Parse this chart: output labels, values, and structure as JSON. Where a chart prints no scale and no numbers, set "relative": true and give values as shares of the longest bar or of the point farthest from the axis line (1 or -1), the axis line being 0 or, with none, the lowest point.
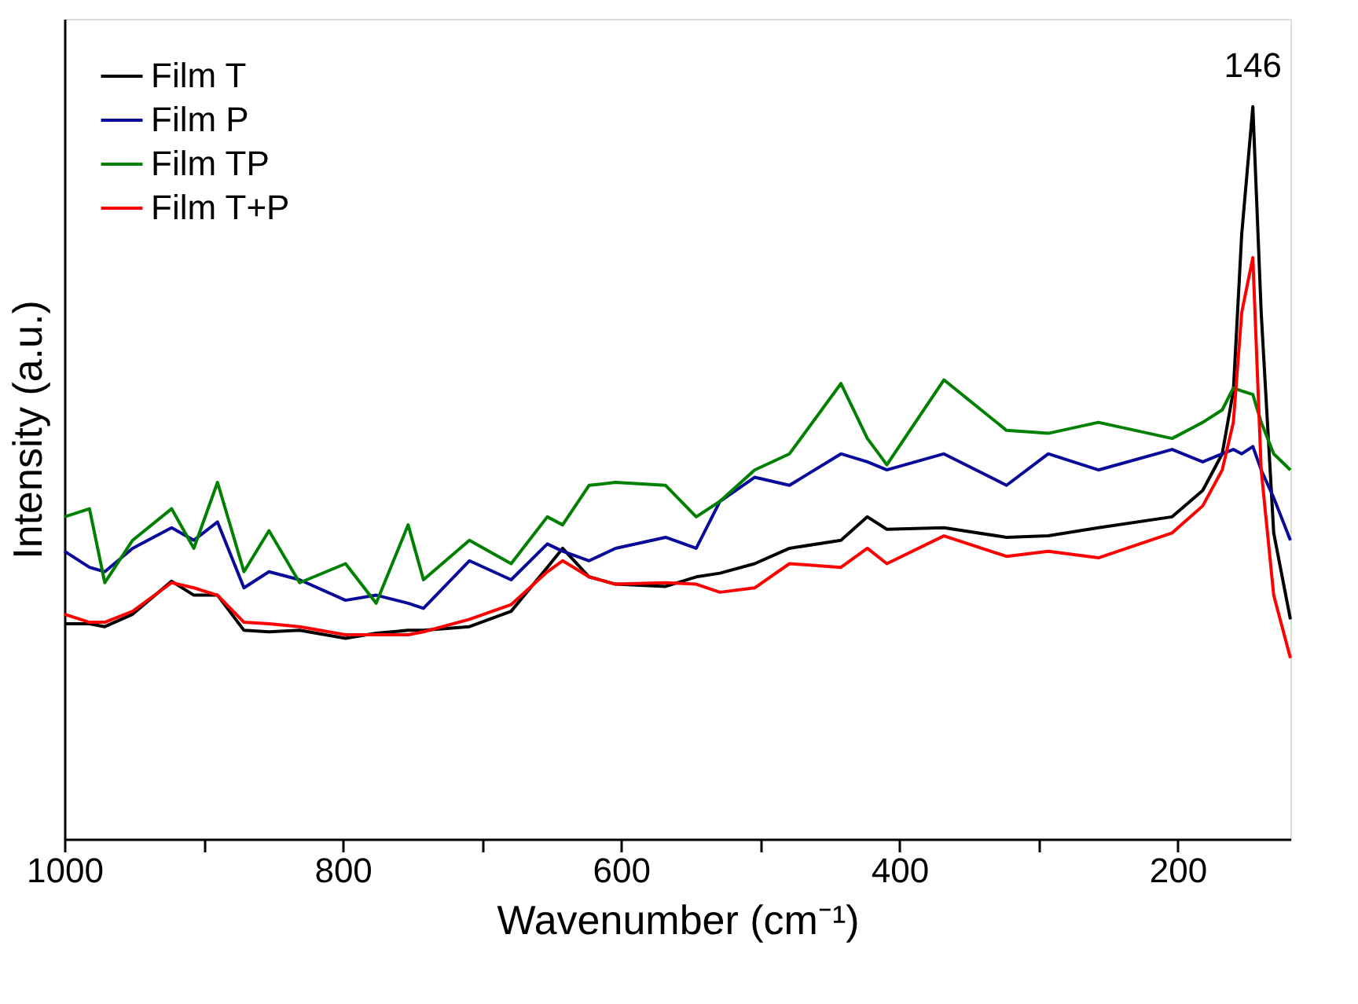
{
  "chart_data": {
    "type": "line",
    "relative": true,
    "xlabel": "Wavenumber (cm⁻¹)",
    "ylabel": "Intensity (a.u.)",
    "xlim": [
      1000,
      119
    ],
    "xticks": [
      1000,
      {
        "value": 900,
        "label": null
      },
      800,
      {
        "value": 700,
        "label": null
      },
      600,
      {
        "value": 500,
        "label": null
      },
      400,
      {
        "value": 300,
        "label": null
      },
      200
    ],
    "x": [
      1000,
      982,
      971,
      951,
      923,
      907,
      890,
      871,
      853,
      831,
      798,
      776,
      753,
      742,
      709,
      679,
      653,
      642,
      623,
      604,
      568,
      546,
      529,
      504,
      479,
      442,
      423,
      409,
      368,
      323,
      293,
      257,
      204,
      182,
      168,
      160,
      154,
      146,
      140,
      131,
      119
    ],
    "series": [
      {
        "name": "Film T",
        "color": "#000000",
        "values": [
          0.294,
          0.294,
          0.29,
          0.307,
          0.352,
          0.333,
          0.333,
          0.285,
          0.283,
          0.285,
          0.274,
          0.281,
          0.285,
          0.285,
          0.29,
          0.311,
          0.371,
          0.397,
          0.358,
          0.348,
          0.345,
          0.358,
          0.363,
          0.376,
          0.397,
          0.408,
          0.44,
          0.423,
          0.425,
          0.412,
          0.414,
          0.425,
          0.44,
          0.476,
          0.526,
          0.612,
          0.826,
          1,
          0.719,
          0.418,
          0.3
        ]
      },
      {
        "name": "Film P",
        "color": "#0a0a9a",
        "values": [
          0.393,
          0.371,
          0.365,
          0.397,
          0.425,
          0.408,
          0.433,
          0.343,
          0.365,
          0.354,
          0.326,
          0.333,
          0.322,
          0.315,
          0.38,
          0.354,
          0.403,
          0.393,
          0.38,
          0.397,
          0.412,
          0.397,
          0.461,
          0.494,
          0.483,
          0.526,
          0.515,
          0.504,
          0.526,
          0.483,
          0.526,
          0.504,
          0.532,
          0.515,
          0.526,
          0.532,
          0.526,
          0.536,
          0.504,
          0.466,
          0.408
        ]
      },
      {
        "name": "Film TP",
        "color": "#008000",
        "values": [
          0.44,
          0.451,
          0.35,
          0.408,
          0.451,
          0.397,
          0.487,
          0.365,
          0.421,
          0.35,
          0.376,
          0.322,
          0.429,
          0.354,
          0.408,
          0.376,
          0.44,
          0.429,
          0.483,
          0.487,
          0.483,
          0.44,
          0.461,
          0.504,
          0.526,
          0.622,
          0.547,
          0.511,
          0.627,
          0.558,
          0.554,
          0.569,
          0.547,
          0.569,
          0.586,
          0.616,
          0.612,
          0.607,
          0.569,
          0.526,
          0.504
        ]
      },
      {
        "name": "Film T+P",
        "color": "#ff0000",
        "values": [
          0.307,
          0.296,
          0.296,
          0.311,
          0.35,
          0.343,
          0.333,
          0.296,
          0.294,
          0.29,
          0.279,
          0.279,
          0.279,
          0.283,
          0.3,
          0.32,
          0.365,
          0.38,
          0.358,
          0.348,
          0.35,
          0.348,
          0.337,
          0.343,
          0.376,
          0.371,
          0.397,
          0.376,
          0.414,
          0.386,
          0.393,
          0.384,
          0.418,
          0.455,
          0.504,
          0.569,
          0.719,
          0.794,
          0.504,
          0.333,
          0.247
        ]
      }
    ],
    "annotations": [
      {
        "text": "146",
        "x": 146,
        "y": 1
      }
    ],
    "legend": "top left",
    "grid": false,
    "marker": "none",
    "line_style": "solid"
  }
}
